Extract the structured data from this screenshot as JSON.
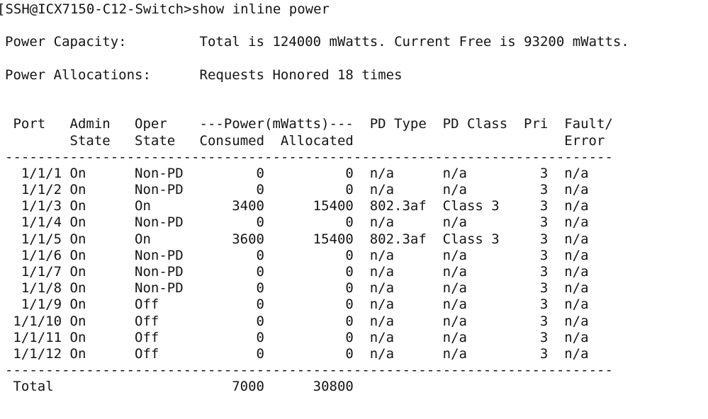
{
  "colors": {
    "background": "#ffffff",
    "text": "#141414"
  },
  "terminal": {
    "prompt_line": "[SSH@ICX7150-C12-Switch>show inline power",
    "power_capacity": {
      "label": "Power Capacity:",
      "value": "Total is 124000 mWatts. Current Free is 93200 mWatts."
    },
    "power_allocations": {
      "label": "Power Allocations:",
      "value": "Requests Honored 18 times"
    },
    "separator": {
      "char": "-",
      "count": 75
    },
    "table": {
      "headers": {
        "port": "Port",
        "admin": "Admin",
        "admin_sub": "State",
        "oper": "Oper",
        "oper_sub": "State",
        "power_group": "---Power(mWatts)---",
        "consumed": "Consumed",
        "allocated": "Allocated",
        "pd_type": "PD Type",
        "pd_class": "PD Class",
        "pri": "Pri",
        "fault": "Fault/",
        "fault_sub": "Error"
      },
      "rows": [
        {
          "port": "1/1/1",
          "admin": "On",
          "oper": "Non-PD",
          "consumed": "0",
          "allocated": "0",
          "pd_type": "n/a",
          "pd_class": "n/a",
          "pri": "3",
          "fault": "n/a"
        },
        {
          "port": "1/1/2",
          "admin": "On",
          "oper": "Non-PD",
          "consumed": "0",
          "allocated": "0",
          "pd_type": "n/a",
          "pd_class": "n/a",
          "pri": "3",
          "fault": "n/a"
        },
        {
          "port": "1/1/3",
          "admin": "On",
          "oper": "On",
          "consumed": "3400",
          "allocated": "15400",
          "pd_type": "802.3af",
          "pd_class": "Class 3",
          "pri": "3",
          "fault": "n/a"
        },
        {
          "port": "1/1/4",
          "admin": "On",
          "oper": "Non-PD",
          "consumed": "0",
          "allocated": "0",
          "pd_type": "n/a",
          "pd_class": "n/a",
          "pri": "3",
          "fault": "n/a"
        },
        {
          "port": "1/1/5",
          "admin": "On",
          "oper": "On",
          "consumed": "3600",
          "allocated": "15400",
          "pd_type": "802.3af",
          "pd_class": "Class 3",
          "pri": "3",
          "fault": "n/a"
        },
        {
          "port": "1/1/6",
          "admin": "On",
          "oper": "Non-PD",
          "consumed": "0",
          "allocated": "0",
          "pd_type": "n/a",
          "pd_class": "n/a",
          "pri": "3",
          "fault": "n/a"
        },
        {
          "port": "1/1/7",
          "admin": "On",
          "oper": "Non-PD",
          "consumed": "0",
          "allocated": "0",
          "pd_type": "n/a",
          "pd_class": "n/a",
          "pri": "3",
          "fault": "n/a"
        },
        {
          "port": "1/1/8",
          "admin": "On",
          "oper": "Non-PD",
          "consumed": "0",
          "allocated": "0",
          "pd_type": "n/a",
          "pd_class": "n/a",
          "pri": "3",
          "fault": "n/a"
        },
        {
          "port": "1/1/9",
          "admin": "On",
          "oper": "Off",
          "consumed": "0",
          "allocated": "0",
          "pd_type": "n/a",
          "pd_class": "n/a",
          "pri": "3",
          "fault": "n/a"
        },
        {
          "port": "1/1/10",
          "admin": "On",
          "oper": "Off",
          "consumed": "0",
          "allocated": "0",
          "pd_type": "n/a",
          "pd_class": "n/a",
          "pri": "3",
          "fault": "n/a"
        },
        {
          "port": "1/1/11",
          "admin": "On",
          "oper": "Off",
          "consumed": "0",
          "allocated": "0",
          "pd_type": "n/a",
          "pd_class": "n/a",
          "pri": "3",
          "fault": "n/a"
        },
        {
          "port": "1/1/12",
          "admin": "On",
          "oper": "Off",
          "consumed": "0",
          "allocated": "0",
          "pd_type": "n/a",
          "pd_class": "n/a",
          "pri": "3",
          "fault": "n/a"
        }
      ],
      "total": {
        "label": "Total",
        "consumed": "7000",
        "allocated": "30800"
      }
    }
  }
}
